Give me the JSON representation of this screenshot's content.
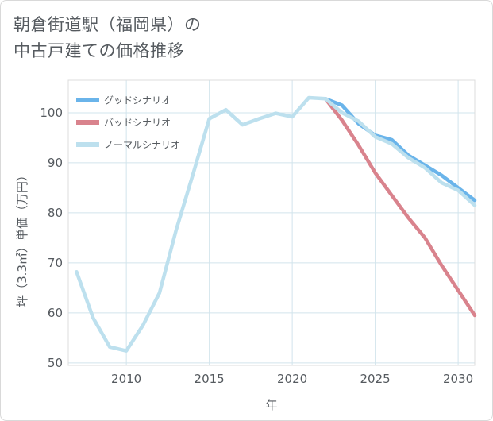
{
  "title_lines": [
    "朝倉街道駅（福岡県）の",
    "中古戸建ての価格推移"
  ],
  "chart_data": {
    "type": "line",
    "xlabel": "年",
    "ylabel": "坪（3.3㎡）単価（万円）",
    "xlim": [
      2006.5,
      2031
    ],
    "ylim": [
      49.5,
      106.5
    ],
    "xticks": [
      2010,
      2015,
      2020,
      2025,
      2030
    ],
    "yticks": [
      50,
      60,
      70,
      80,
      90,
      100
    ],
    "legend_position": "top-left",
    "series": [
      {
        "name": "グッドシナリオ",
        "color": "#6ab4ea",
        "x": [
          2022,
          2023,
          2024,
          2025,
          2026,
          2027,
          2028,
          2029,
          2030,
          2031
        ],
        "y": [
          102.8,
          101.5,
          97.8,
          95.5,
          94.6,
          91.5,
          89.5,
          87.5,
          85.0,
          82.5
        ]
      },
      {
        "name": "バッドシナリオ",
        "color": "#d9838d",
        "x": [
          2022,
          2023,
          2024,
          2025,
          2026,
          2027,
          2028,
          2029,
          2030,
          2031
        ],
        "y": [
          102.8,
          98.5,
          93.5,
          88.0,
          83.5,
          79.0,
          75.0,
          69.5,
          64.5,
          59.5
        ]
      },
      {
        "name": "ノーマルシナリオ",
        "color": "#bde0ee",
        "x": [
          2007,
          2008,
          2009,
          2010,
          2011,
          2012,
          2013,
          2014,
          2015,
          2016,
          2017,
          2018,
          2019,
          2020,
          2021,
          2022,
          2023,
          2024,
          2025,
          2026,
          2027,
          2028,
          2029,
          2030,
          2031
        ],
        "y": [
          68.2,
          59.0,
          53.2,
          52.4,
          57.5,
          64.0,
          76.5,
          87.5,
          98.8,
          100.6,
          97.6,
          98.8,
          99.9,
          99.2,
          103.0,
          102.8,
          100.0,
          98.3,
          95.2,
          93.8,
          91.0,
          89.0,
          86.0,
          84.5,
          81.5
        ]
      }
    ]
  }
}
